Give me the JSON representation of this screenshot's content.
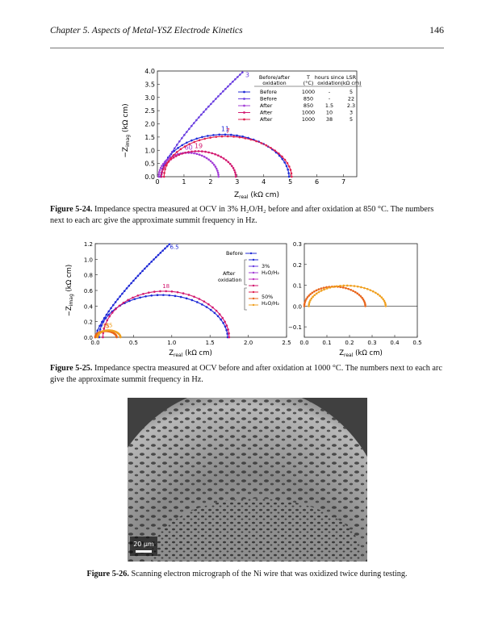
{
  "header": {
    "chapter_title": "Chapter 5. Aspects of Metal-YSZ Electrode Kinetics",
    "page_number": "146"
  },
  "figure_24": {
    "caption_label": "Figure 5-24.",
    "caption_text": "Impedance spectra measured at OCV in 3% H₂O/H₂ before and after oxidation at 850 °C. The numbers next to each arc give the approximate summit frequency in Hz.",
    "legend_table": {
      "headers": [
        "Before/after oxidation",
        "T (°C)",
        "hours since oxidation",
        "LSRₚ (kΩ cm)"
      ],
      "rows": [
        [
          "Before",
          "1000",
          "-",
          "5"
        ],
        [
          "Before",
          "850",
          "-",
          "22"
        ],
        [
          "After",
          "850",
          "1.5",
          "2.3"
        ],
        [
          "After",
          "1000",
          "10",
          "3"
        ],
        [
          "After",
          "1000",
          "38",
          "5"
        ]
      ]
    }
  },
  "figure_25": {
    "caption_label": "Figure 5-25.",
    "caption_text": "Impedance spectra measured at OCV before and after oxidation at 1000 °C. The numbers next to each arc give the approximate summit frequency in Hz.",
    "legend": {
      "before": "Before",
      "after": "After oxidation",
      "group1": "3% H₂O/H₂",
      "group2": "50% H₂O/H₂"
    }
  },
  "figure_26": {
    "caption_label": "Figure 5-26.",
    "caption_text": "Scanning electron micrograph of the Ni wire that was oxidized twice during testing.",
    "scale_bar": "20 µm"
  },
  "chart_data": [
    {
      "type": "line",
      "xlabel": "Z_real (kΩ cm)",
      "ylabel": "−Z_imag (kΩ cm)",
      "xlim": [
        0,
        7.5
      ],
      "ylim": [
        0,
        4.0
      ],
      "xticks": [
        "0",
        "1",
        "2",
        "3",
        "4",
        "5",
        "6",
        "7"
      ],
      "yticks": [
        "0.0",
        "0.5",
        "1.0",
        "1.5",
        "2.0",
        "2.5",
        "3.0",
        "3.5",
        "4.0"
      ],
      "series": [
        {
          "color": "#1f2ad6",
          "type": "arc",
          "r0": 0.15,
          "r1": 4.95,
          "peak": 1.62,
          "label": "11"
        },
        {
          "color": "#6a3fe0",
          "type": "open",
          "r0": 0.1,
          "r1": 3.2,
          "peak": 3.95,
          "label": "3"
        },
        {
          "color": "#a33fd6",
          "type": "arc",
          "r0": 0.05,
          "r1": 2.3,
          "peak": 0.92,
          "label": "60"
        },
        {
          "color": "#d2186f",
          "type": "arc",
          "r0": 0.15,
          "r1": 2.95,
          "peak": 0.98,
          "label": "19"
        },
        {
          "color": "#e02050",
          "type": "arc",
          "r0": 0.25,
          "r1": 5.05,
          "peak": 1.55,
          "label": "7"
        }
      ]
    },
    {
      "type": "line",
      "xlabel": "Z_real (kΩ cm)",
      "ylabel": "−Z_imag (kΩ cm)",
      "xlim": [
        0,
        2.5
      ],
      "ylim": [
        0,
        1.2
      ],
      "xticks": [
        "0.0",
        "0.5",
        "1.0",
        "1.5",
        "2.0",
        "2.5"
      ],
      "yticks": [
        "0.0",
        "0.2",
        "0.4",
        "0.6",
        "0.8",
        "1.0",
        "1.2"
      ],
      "series": [
        {
          "color": "#1f2ad6",
          "type": "open",
          "r0": 0.0,
          "r1": 1.0,
          "peak": 1.22,
          "label": "6.5"
        },
        {
          "color": "#1f2ad6",
          "type": "arc",
          "r0": 0.05,
          "r1": 1.73,
          "peak": 0.55,
          "label": ""
        },
        {
          "color": "#d2186f",
          "type": "arc",
          "r0": 0.1,
          "r1": 1.75,
          "peak": 0.6,
          "label": "18"
        },
        {
          "color": "#e8641a",
          "type": "arc",
          "r0": 0.0,
          "r1": 0.28,
          "peak": 0.08,
          "label": "35"
        },
        {
          "color": "#f0a020",
          "type": "arc",
          "r0": 0.03,
          "r1": 0.33,
          "peak": 0.09,
          "label": "55"
        }
      ]
    },
    {
      "type": "line",
      "xlabel": "Z_real (kΩ cm)",
      "ylabel": "",
      "xlim": [
        0,
        0.5
      ],
      "ylim": [
        -0.15,
        0.3
      ],
      "xticks": [
        "0.0",
        "0.1",
        "0.2",
        "0.3",
        "0.4",
        "0.5"
      ],
      "yticks": [
        "−0.1",
        "0.0",
        "0.1",
        "0.2",
        "0.3"
      ],
      "series": [
        {
          "color": "#e8641a",
          "r0": 0.0,
          "r1": 0.27,
          "peak": 0.095
        },
        {
          "color": "#f0a020",
          "r0": 0.02,
          "r1": 0.36,
          "peak": 0.1
        }
      ]
    }
  ]
}
